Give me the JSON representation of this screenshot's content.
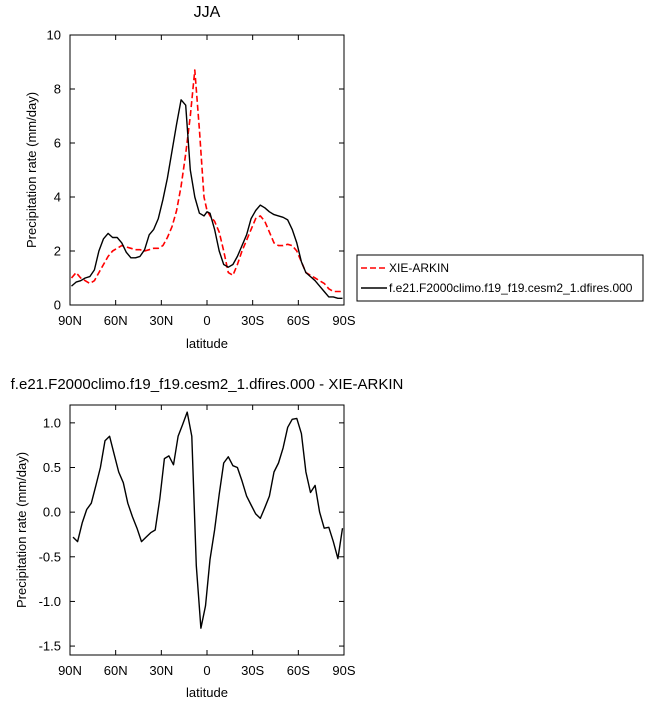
{
  "chart_data": [
    {
      "type": "line",
      "title": "JJA",
      "xlabel": "latitude",
      "ylabel": "Precipitation rate (mm/day)",
      "xlim": [
        90,
        -90
      ],
      "ylim": [
        0,
        10
      ],
      "xticks": [
        90,
        60,
        30,
        0,
        -30,
        -60,
        -90
      ],
      "xtick_labels": [
        "90N",
        "60N",
        "30N",
        "0",
        "30S",
        "60S",
        "90S"
      ],
      "yticks": [
        0,
        2,
        4,
        6,
        8,
        10
      ],
      "ytick_labels": [
        "0",
        "2",
        "4",
        "6",
        "8",
        "10"
      ],
      "grid": false,
      "legend_position": "right",
      "series": [
        {
          "name": "XIE-ARKIN",
          "color": "#ff0000",
          "dash": "dashed",
          "x": [
            89,
            86,
            83,
            80,
            77,
            74,
            71,
            68,
            65,
            62,
            59,
            56,
            53,
            50,
            47,
            44,
            41,
            38,
            35,
            32,
            29,
            26,
            23,
            20,
            17,
            14,
            11,
            8,
            5,
            2,
            0,
            -2,
            -5,
            -8,
            -11,
            -14,
            -17,
            -20,
            -23,
            -26,
            -29,
            -32,
            -35,
            -38,
            -41,
            -44,
            -47,
            -50,
            -53,
            -56,
            -59,
            -62,
            -65,
            -68,
            -71,
            -74,
            -77,
            -80,
            -83,
            -86,
            -89
          ],
          "y": [
            1.0,
            1.2,
            1.0,
            0.9,
            0.8,
            0.9,
            1.2,
            1.5,
            1.8,
            2.0,
            2.1,
            2.2,
            2.15,
            2.1,
            2.05,
            2.05,
            2.0,
            2.05,
            2.1,
            2.1,
            2.2,
            2.5,
            2.9,
            3.5,
            4.4,
            5.6,
            7.0,
            8.7,
            6.5,
            4.0,
            3.5,
            3.3,
            3.1,
            2.7,
            2.0,
            1.2,
            1.1,
            1.5,
            2.0,
            2.4,
            2.8,
            3.2,
            3.3,
            3.1,
            2.7,
            2.3,
            2.2,
            2.2,
            2.25,
            2.2,
            2.0,
            1.6,
            1.2,
            1.1,
            1.0,
            0.9,
            0.8,
            0.6,
            0.5,
            0.5,
            0.5
          ]
        },
        {
          "name": "f.e21.F2000climo.f19_f19.cesm2_1.dfires.000",
          "color": "#000000",
          "dash": "solid",
          "x": [
            89,
            86,
            83,
            80,
            77,
            74,
            71,
            68,
            65,
            62,
            59,
            56,
            53,
            50,
            47,
            44,
            41,
            38,
            35,
            32,
            29,
            26,
            23,
            20,
            17,
            14,
            11,
            8,
            5,
            2,
            0,
            -2,
            -5,
            -8,
            -11,
            -14,
            -17,
            -20,
            -23,
            -26,
            -29,
            -32,
            -35,
            -38,
            -41,
            -44,
            -47,
            -50,
            -53,
            -56,
            -59,
            -62,
            -65,
            -68,
            -71,
            -74,
            -77,
            -80,
            -83,
            -86,
            -89
          ],
          "y": [
            0.7,
            0.85,
            0.9,
            1.0,
            1.05,
            1.3,
            2.0,
            2.45,
            2.65,
            2.5,
            2.5,
            2.3,
            1.95,
            1.75,
            1.75,
            1.8,
            2.05,
            2.6,
            2.8,
            3.2,
            3.9,
            4.7,
            5.7,
            6.7,
            7.6,
            7.4,
            5.0,
            4.0,
            3.4,
            3.3,
            3.45,
            3.4,
            2.8,
            2.0,
            1.5,
            1.4,
            1.5,
            1.8,
            2.2,
            2.6,
            3.2,
            3.5,
            3.7,
            3.6,
            3.45,
            3.35,
            3.3,
            3.25,
            3.15,
            2.8,
            2.3,
            1.6,
            1.2,
            1.05,
            0.9,
            0.7,
            0.5,
            0.3,
            0.3,
            0.25,
            0.25
          ]
        }
      ]
    },
    {
      "type": "line",
      "title": "f.e21.F2000climo.f19_f19.cesm2_1.dfires.000 - XIE-ARKIN",
      "xlabel": "latitude",
      "ylabel": "Precipitation rate (mm/day)",
      "xlim": [
        90,
        -90
      ],
      "ylim": [
        -1.6,
        1.2
      ],
      "xticks": [
        90,
        60,
        30,
        0,
        -30,
        -60,
        -90
      ],
      "xtick_labels": [
        "90N",
        "60N",
        "30N",
        "0",
        "30S",
        "60S",
        "90S"
      ],
      "yticks": [
        1.0,
        0.5,
        0.0,
        -0.5,
        -1.0,
        -1.5
      ],
      "ytick_labels": [
        "1.0",
        "0.5",
        "0.0",
        "-0.5",
        "-1.0",
        "-1.5"
      ],
      "grid": false,
      "series": [
        {
          "color": "#000000",
          "dash": "solid",
          "x": [
            88,
            85,
            82,
            79,
            76,
            73,
            70,
            67,
            64,
            61,
            58,
            55,
            52,
            49,
            46,
            43,
            40,
            37,
            34,
            31,
            28,
            25,
            22,
            19,
            16,
            13,
            10,
            7,
            4,
            1,
            -2,
            -5,
            -8,
            -11,
            -14,
            -17,
            -20,
            -23,
            -26,
            -29,
            -32,
            -35,
            -38,
            -41,
            -44,
            -47,
            -50,
            -53,
            -56,
            -59,
            -62,
            -65,
            -68,
            -71,
            -74,
            -77,
            -80,
            -83,
            -86,
            -89
          ],
          "y": [
            -0.28,
            -0.33,
            -0.12,
            0.03,
            0.1,
            0.3,
            0.5,
            0.8,
            0.85,
            0.65,
            0.45,
            0.33,
            0.1,
            -0.05,
            -0.18,
            -0.33,
            -0.28,
            -0.23,
            -0.2,
            0.15,
            0.6,
            0.63,
            0.53,
            0.85,
            0.98,
            1.12,
            0.85,
            -0.6,
            -1.3,
            -1.05,
            -0.53,
            -0.2,
            0.2,
            0.55,
            0.62,
            0.52,
            0.5,
            0.35,
            0.18,
            0.08,
            -0.02,
            -0.07,
            0.05,
            0.18,
            0.45,
            0.55,
            0.72,
            0.95,
            1.04,
            1.05,
            0.88,
            0.45,
            0.22,
            0.3,
            0.0,
            -0.18,
            -0.17,
            -0.33,
            -0.52,
            -0.18
          ]
        }
      ]
    }
  ]
}
